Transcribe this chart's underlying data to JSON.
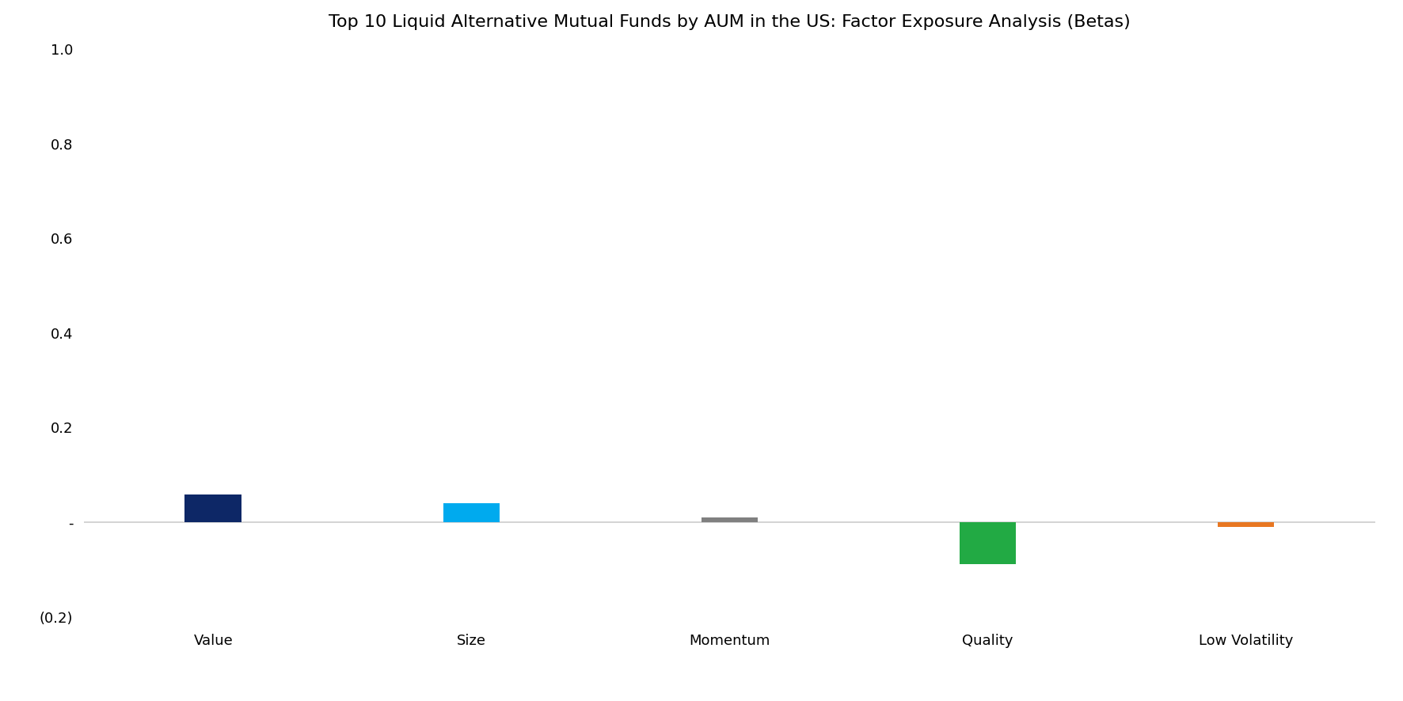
{
  "title": "Top 10 Liquid Alternative Mutual Funds by AUM in the US: Factor Exposure Analysis (Betas)",
  "categories": [
    "Value",
    "Size",
    "Momentum",
    "Quality",
    "Low Volatility"
  ],
  "values": [
    0.058,
    0.04,
    0.01,
    -0.088,
    -0.01
  ],
  "bar_colors": [
    "#0d2766",
    "#00aaee",
    "#808080",
    "#22aa44",
    "#e87722"
  ],
  "ylim": [
    -0.2,
    1.0
  ],
  "yticks": [
    -0.2,
    0.0,
    0.2,
    0.4,
    0.6,
    0.8,
    1.0
  ],
  "ytick_labels": [
    "(0.2)",
    "-",
    "0.2",
    "0.4",
    "0.6",
    "0.8",
    "1.0"
  ],
  "background_color": "#ffffff",
  "bar_width": 0.22,
  "title_fontsize": 16,
  "tick_fontsize": 13,
  "zero_line_color": "#cccccc",
  "xlim_left": -0.5,
  "xlim_right": 4.5
}
